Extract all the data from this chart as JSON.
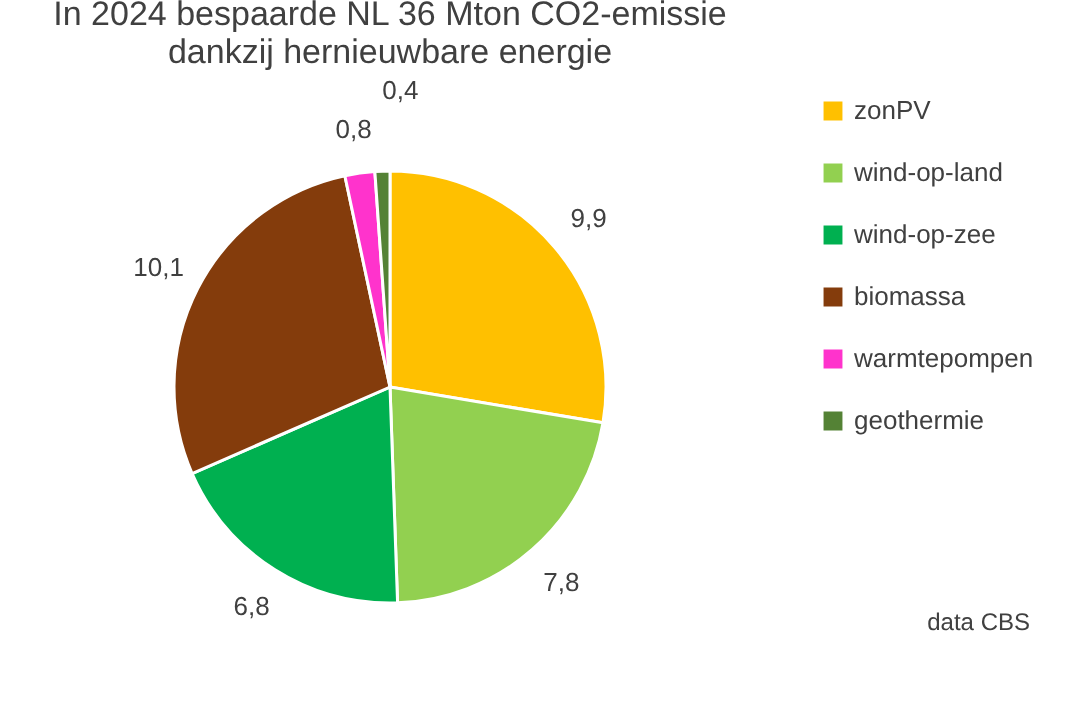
{
  "chart_data": {
    "type": "pie",
    "title": [
      "In 2024 bespaarde NL 36 Mton CO2-emissie",
      "dankzij hernieuwbare energie"
    ],
    "categories": [
      "zonPV",
      "wind-op-land",
      "wind-op-zee",
      "biomassa",
      "warmtepompen",
      "geothermie"
    ],
    "values": [
      9.9,
      7.8,
      6.8,
      10.1,
      0.8,
      0.4
    ],
    "value_labels": [
      "9,9",
      "7,8",
      "6,8",
      "10,1",
      "0,8",
      "0,4"
    ],
    "colors": [
      "#ffc000",
      "#92d050",
      "#00b050",
      "#843c0c",
      "#ff33cc",
      "#548235"
    ],
    "legend": "right",
    "annotations": [
      "data CBS"
    ]
  }
}
